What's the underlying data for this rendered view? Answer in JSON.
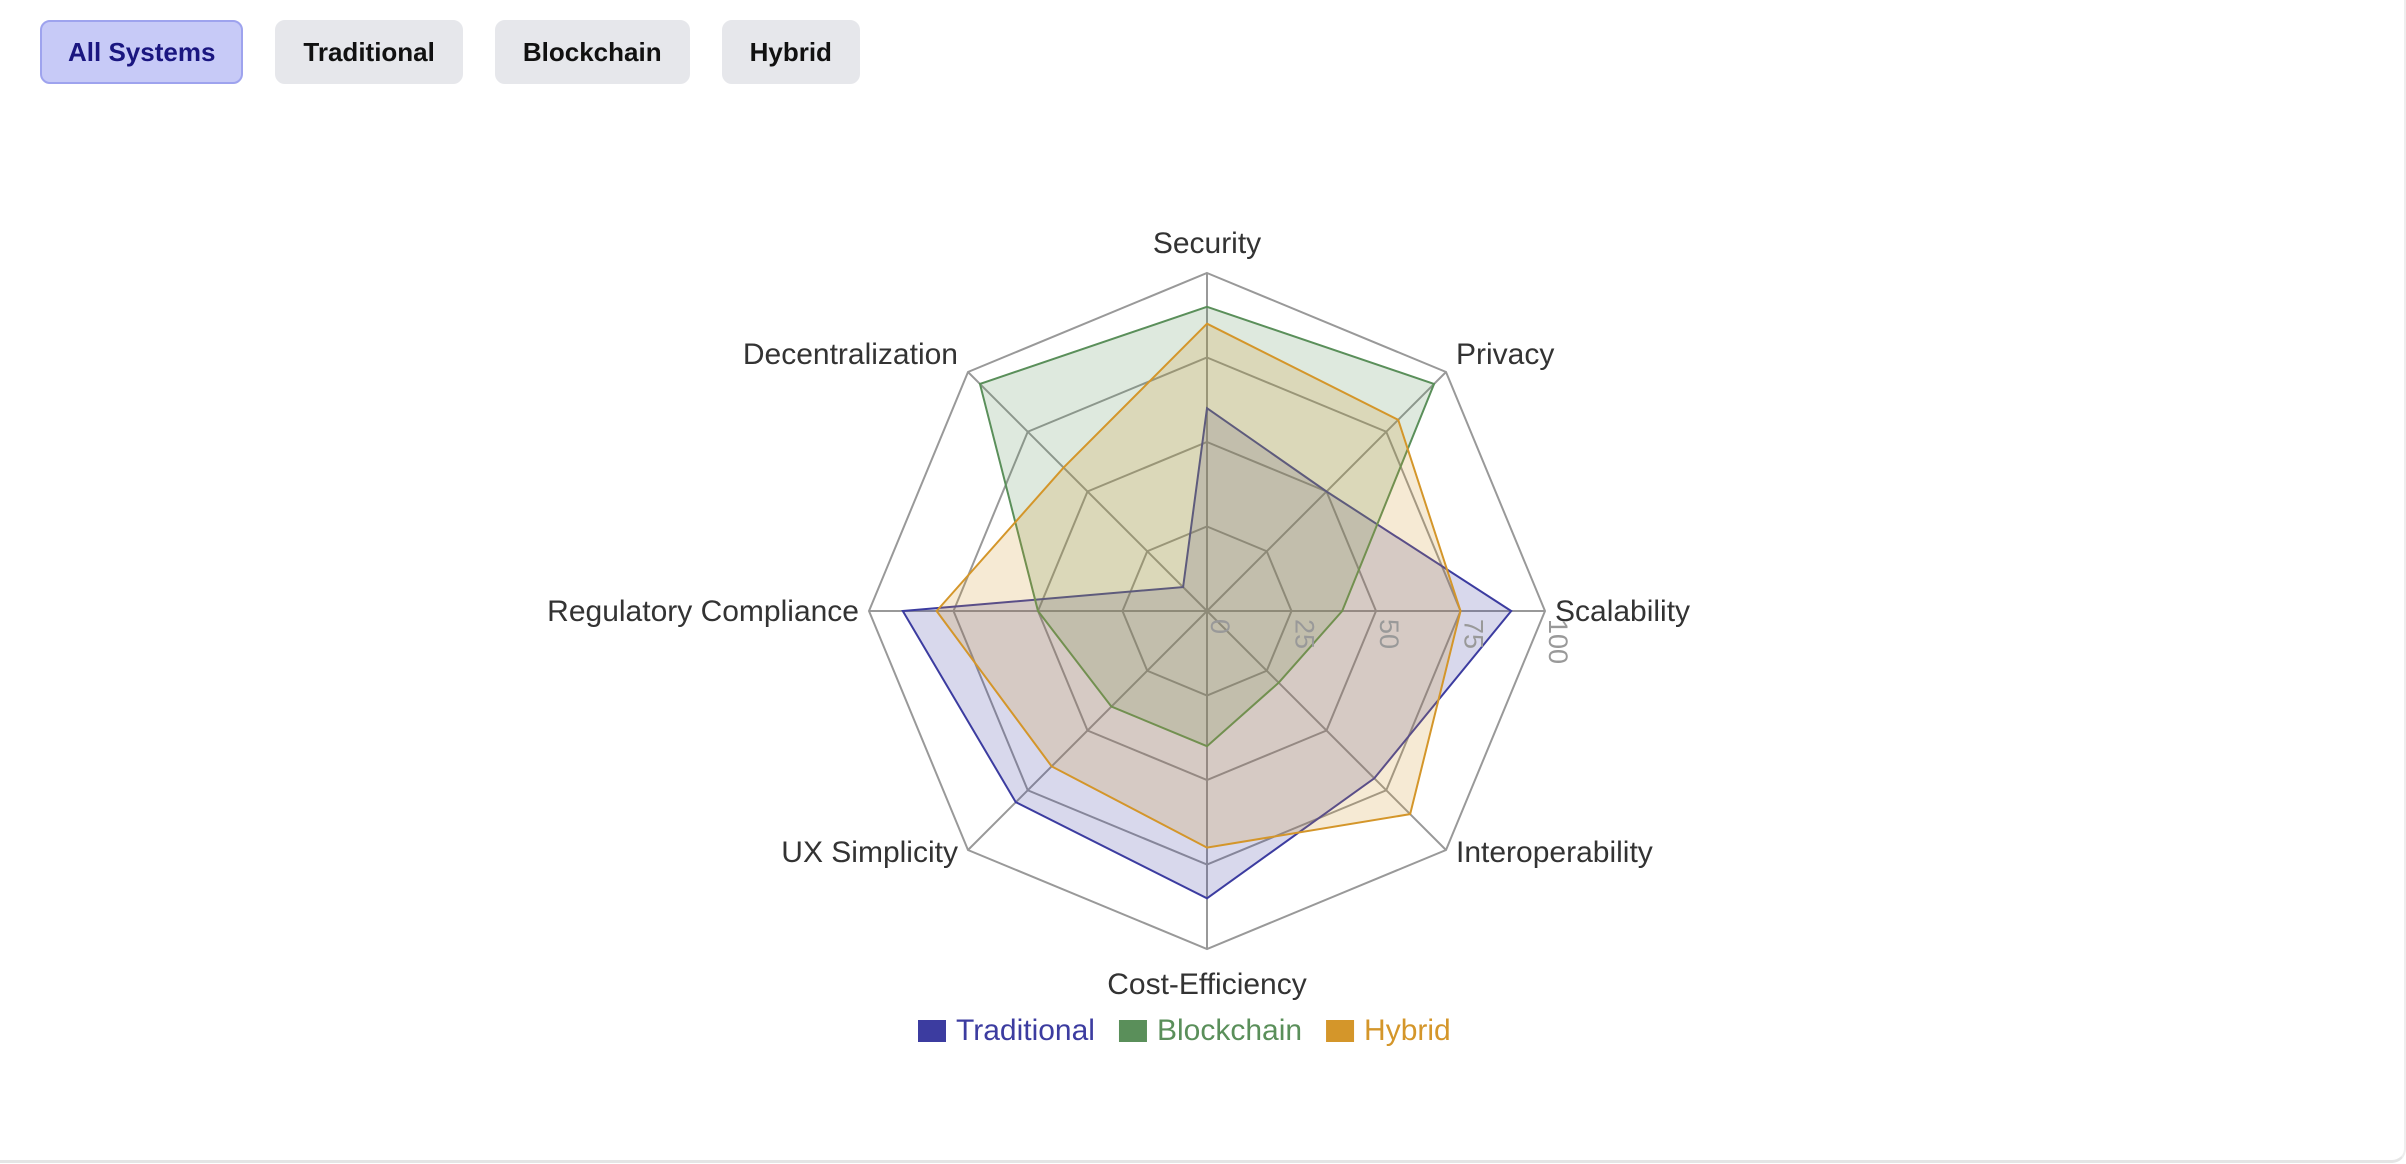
{
  "filters": [
    {
      "label": "All Systems",
      "active": true
    },
    {
      "label": "Traditional",
      "active": false
    },
    {
      "label": "Blockchain",
      "active": false
    },
    {
      "label": "Hybrid",
      "active": false
    }
  ],
  "chart_data": {
    "type": "radar",
    "axes": [
      "Security",
      "Privacy",
      "Scalability",
      "Interoperability",
      "Cost-Efficiency",
      "UX Simplicity",
      "Regulatory Compliance",
      "Decentralization"
    ],
    "rlim": [
      0,
      100
    ],
    "ticks": [
      "0",
      "25",
      "50",
      "75",
      "100"
    ],
    "tick_values": [
      0,
      25,
      50,
      75,
      100
    ],
    "grid": true,
    "legend_position": "bottom",
    "series": [
      {
        "name": "Traditional",
        "color": "#3c3ca0",
        "values": [
          60,
          50,
          90,
          70,
          85,
          80,
          90,
          10
        ]
      },
      {
        "name": "Blockchain",
        "color": "#5a8f5a",
        "values": [
          90,
          95,
          40,
          30,
          40,
          40,
          50,
          95
        ]
      },
      {
        "name": "Hybrid",
        "color": "#d4962a",
        "values": [
          85,
          80,
          75,
          85,
          70,
          65,
          80,
          60
        ]
      }
    ]
  }
}
